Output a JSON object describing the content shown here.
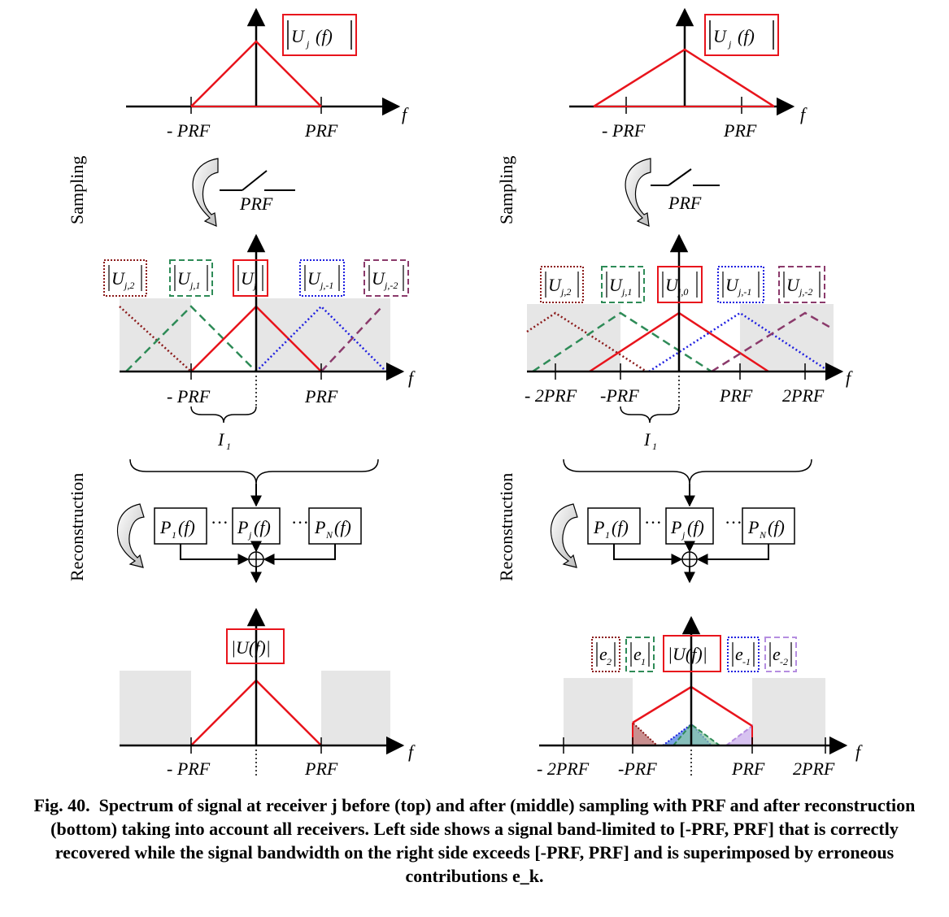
{
  "labels": {
    "neg_prf": "- PRF",
    "prf": "PRF",
    "neg_prf_tight": "-PRF",
    "neg_2prf": "- 2PRF",
    "two_prf": "2PRF",
    "f_axis": "f",
    "sampling": "Sampling",
    "reconstruction": "Reconstruction",
    "switch_prf": "PRF",
    "interval": "I",
    "interval_sub": "1"
  },
  "boxes": {
    "U": "U",
    "Uf": "|U(f)|",
    "e": "e"
  },
  "filters": {
    "p1": "P",
    "p1_sub": "1",
    "pj": "P",
    "pj_sub": "j",
    "pn": "P",
    "pn_sub": "N",
    "arg": "(f)",
    "dots": "···"
  },
  "subscripts": {
    "j": "j",
    "j2": "j,2",
    "j1": "j,1",
    "j0": "j,0",
    "jm1": "j,-1",
    "jm2": "j,-2",
    "e2": "2",
    "e1": "1",
    "em1": "-1",
    "em2": "-2"
  },
  "caption": {
    "fig": "Fig. 40.",
    "text": "Spectrum of signal at receiver j before (top) and after (middle) sampling with PRF and after reconstruction (bottom) taking into account all receivers. Left side shows a signal band-limited to [-PRF, PRF] that is correctly recovered while the signal bandwidth on the right side exceeds [-PRF, PRF] and is superimposed by erroneous contributions e_k."
  },
  "colors": {
    "red": "#e8141c",
    "green": "#2e8b57",
    "blue": "#1f1fe0",
    "darkred": "#8b1a1a",
    "purple": "#8b3a6b",
    "lavender": "#b58de0",
    "gray": "#e6e6e6"
  }
}
